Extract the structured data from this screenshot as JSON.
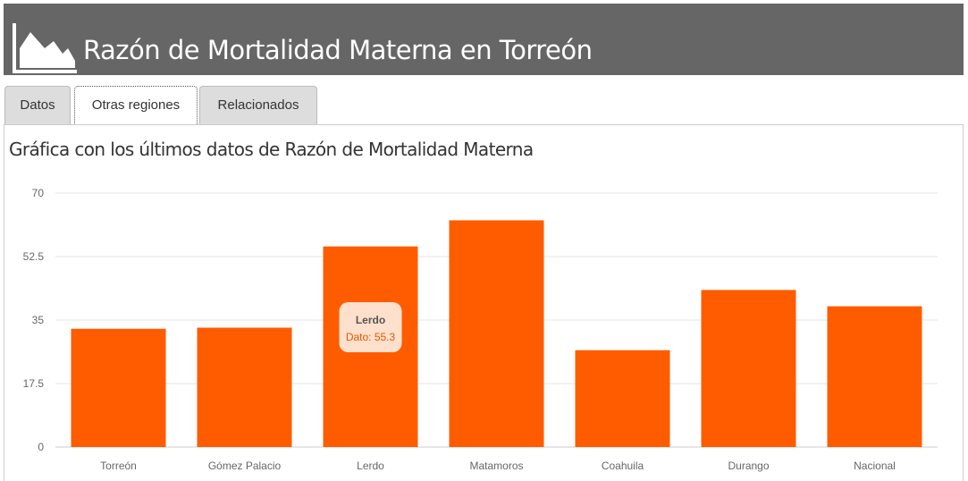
{
  "header": {
    "title": "Razón de Mortalidad Materna en Torreón",
    "logo_icon": "area-chart-icon"
  },
  "tabs": [
    {
      "label": "Datos",
      "active": false
    },
    {
      "label": "Otras regiones",
      "active": true
    },
    {
      "label": "Relacionados",
      "active": false
    }
  ],
  "panel": {
    "subtitle": "Gráfica con los últimos datos de Razón de Mortalidad Materna"
  },
  "colors": {
    "header_bg": "#666666",
    "bar": "#ff5c00",
    "tooltip_bg": "#ffe0cc",
    "tooltip_value": "#e05a00"
  },
  "chart_data": {
    "type": "bar",
    "categories": [
      "Torreón",
      "Gómez Palacio",
      "Lerdo",
      "Matamoros",
      "Coahuila",
      "Durango",
      "Nacional"
    ],
    "values": [
      32.6,
      32.9,
      55.3,
      62.5,
      26.7,
      43.3,
      38.8
    ],
    "ylim": [
      0,
      70
    ],
    "yticks": [
      0,
      17.5,
      35,
      52.5,
      70
    ],
    "grid": true,
    "tooltip": {
      "title": "Lerdo",
      "text": "Dato: 55.3"
    }
  }
}
